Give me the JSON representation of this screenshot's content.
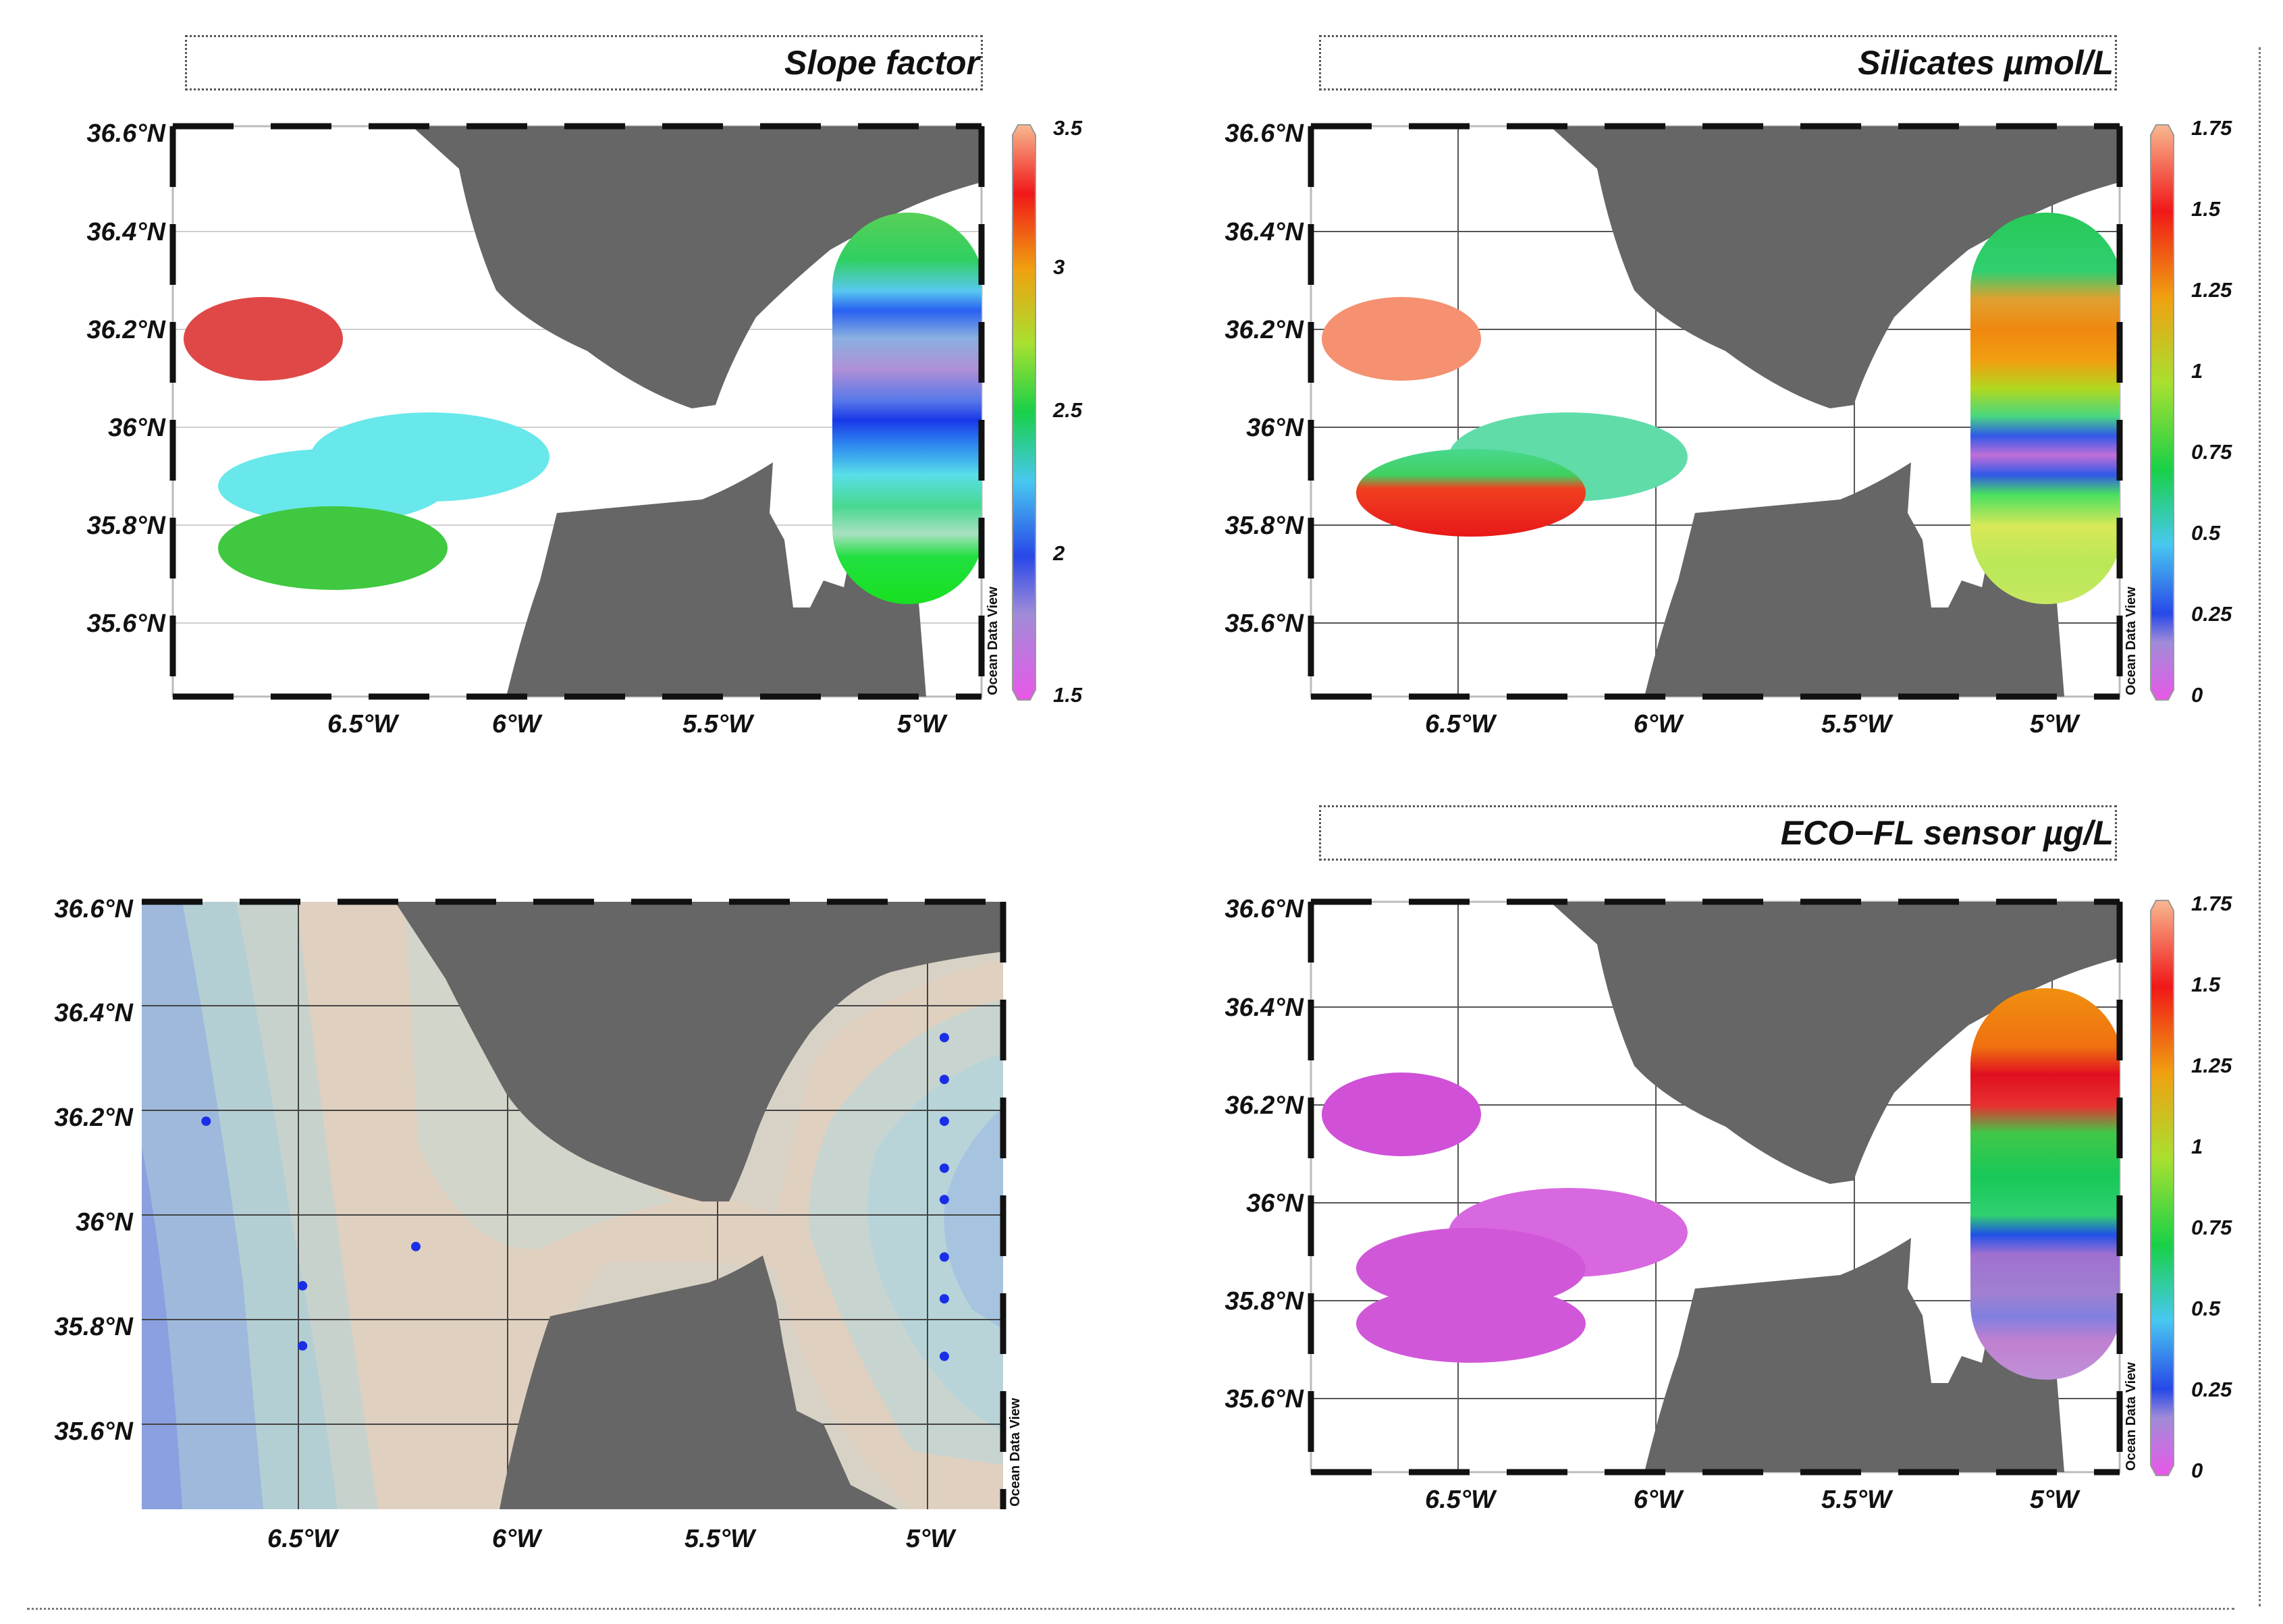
{
  "panels": {
    "slope": {
      "title": "Slope factor",
      "lat_labels": [
        "36.6°N",
        "36.4°N",
        "36.2°N",
        "36°N",
        "35.8°N",
        "35.6°N"
      ],
      "lon_labels": [
        "6.5°W",
        "6°W",
        "5.5°W",
        "5°W"
      ],
      "colorbar": {
        "ticks": [
          "3.5",
          "3",
          "2.5",
          "2",
          "1.5"
        ],
        "range": [
          1.5,
          3.5
        ]
      },
      "watermark": "Ocean Data View"
    },
    "silicates": {
      "title": "Silicates µmol/L",
      "lat_labels": [
        "36.6°N",
        "36.4°N",
        "36.2°N",
        "36°N",
        "35.8°N",
        "35.6°N"
      ],
      "lon_labels": [
        "6.5°W",
        "6°W",
        "5.5°W",
        "5°W"
      ],
      "colorbar": {
        "ticks": [
          "1.75",
          "1.5",
          "1.25",
          "1",
          "0.75",
          "0.5",
          "0.25",
          "0"
        ],
        "range": [
          0,
          1.75
        ]
      },
      "watermark": "Ocean Data View"
    },
    "bathymetry": {
      "lat_labels": [
        "36.6°N",
        "36.4°N",
        "36.2°N",
        "36°N",
        "35.8°N",
        "35.6°N"
      ],
      "lon_labels": [
        "6.5°W",
        "6°W",
        "5.5°W",
        "5°W"
      ],
      "watermark": "Ocean Data View",
      "stations": [
        {
          "lon": -6.72,
          "lat": 36.18
        },
        {
          "lon": -6.22,
          "lat": 35.94
        },
        {
          "lon": -6.49,
          "lat": 35.865
        },
        {
          "lon": -6.49,
          "lat": 35.75
        },
        {
          "lon": -4.96,
          "lat": 36.34
        },
        {
          "lon": -4.96,
          "lat": 36.26
        },
        {
          "lon": -4.96,
          "lat": 36.18
        },
        {
          "lon": -4.96,
          "lat": 36.09
        },
        {
          "lon": -4.96,
          "lat": 36.03
        },
        {
          "lon": -4.96,
          "lat": 35.92
        },
        {
          "lon": -4.96,
          "lat": 35.84
        },
        {
          "lon": -4.96,
          "lat": 35.73
        }
      ]
    },
    "eco": {
      "title": "ECO−FL sensor µg/L",
      "lat_labels": [
        "36.6°N",
        "36.4°N",
        "36.2°N",
        "36°N",
        "35.8°N",
        "35.6°N"
      ],
      "lon_labels": [
        "6.5°W",
        "6°W",
        "5.5°W",
        "5°W"
      ],
      "colorbar": {
        "ticks": [
          "1.75",
          "1.5",
          "1.25",
          "1",
          "0.75",
          "0.5",
          "0.25",
          "0"
        ],
        "range": [
          0,
          1.75
        ]
      },
      "watermark": "Ocean Data View"
    }
  },
  "colors": {
    "land": "#666666",
    "station": "#1a2ee8"
  }
}
